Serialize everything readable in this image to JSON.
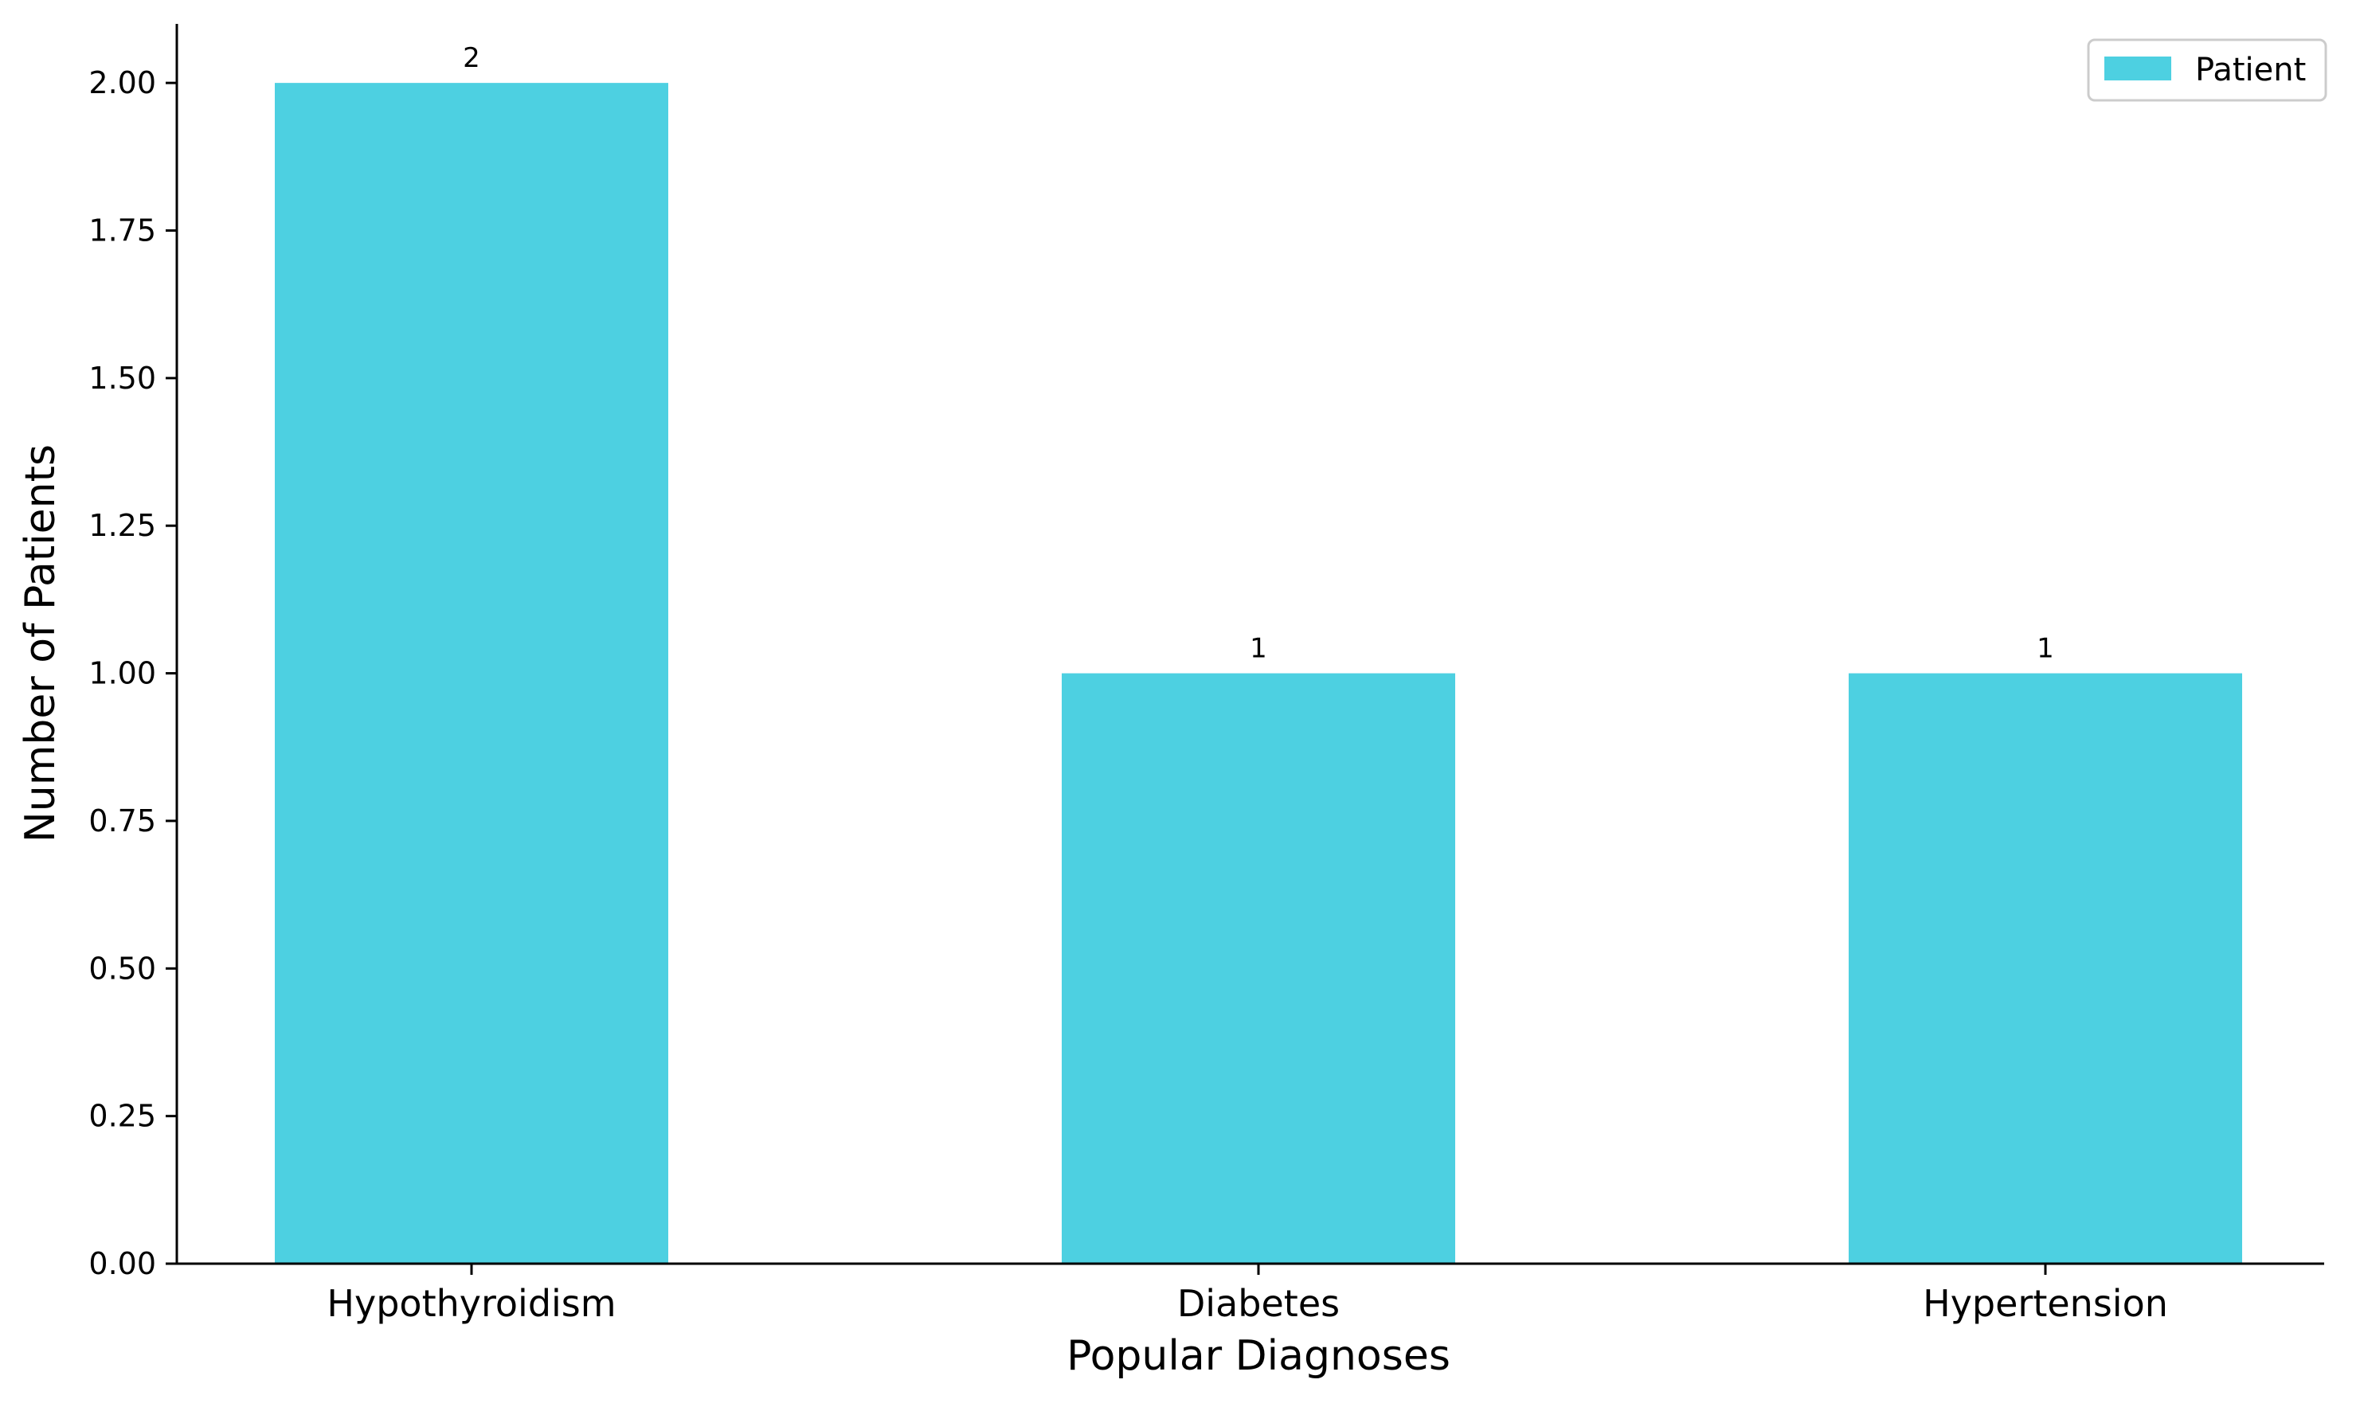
{
  "chart_data": {
    "type": "bar",
    "categories": [
      "Hypothyroidism",
      "Diabetes",
      "Hypertension"
    ],
    "series": [
      {
        "name": "Patient",
        "values": [
          2,
          1,
          1
        ]
      }
    ],
    "data_labels": [
      "2",
      "1",
      "1"
    ],
    "title": "",
    "xlabel": "Popular Diagnoses",
    "ylabel": "Number of Patients",
    "ylim": [
      0,
      2.1
    ],
    "yticks": [
      "0.00",
      "0.25",
      "0.50",
      "0.75",
      "1.00",
      "1.25",
      "1.50",
      "1.75",
      "2.00"
    ],
    "grid": false,
    "legend": {
      "position": "top-right",
      "entries": [
        "Patient"
      ]
    },
    "colors": {
      "bar": "#4dd0e1",
      "axis": "#000000"
    }
  }
}
